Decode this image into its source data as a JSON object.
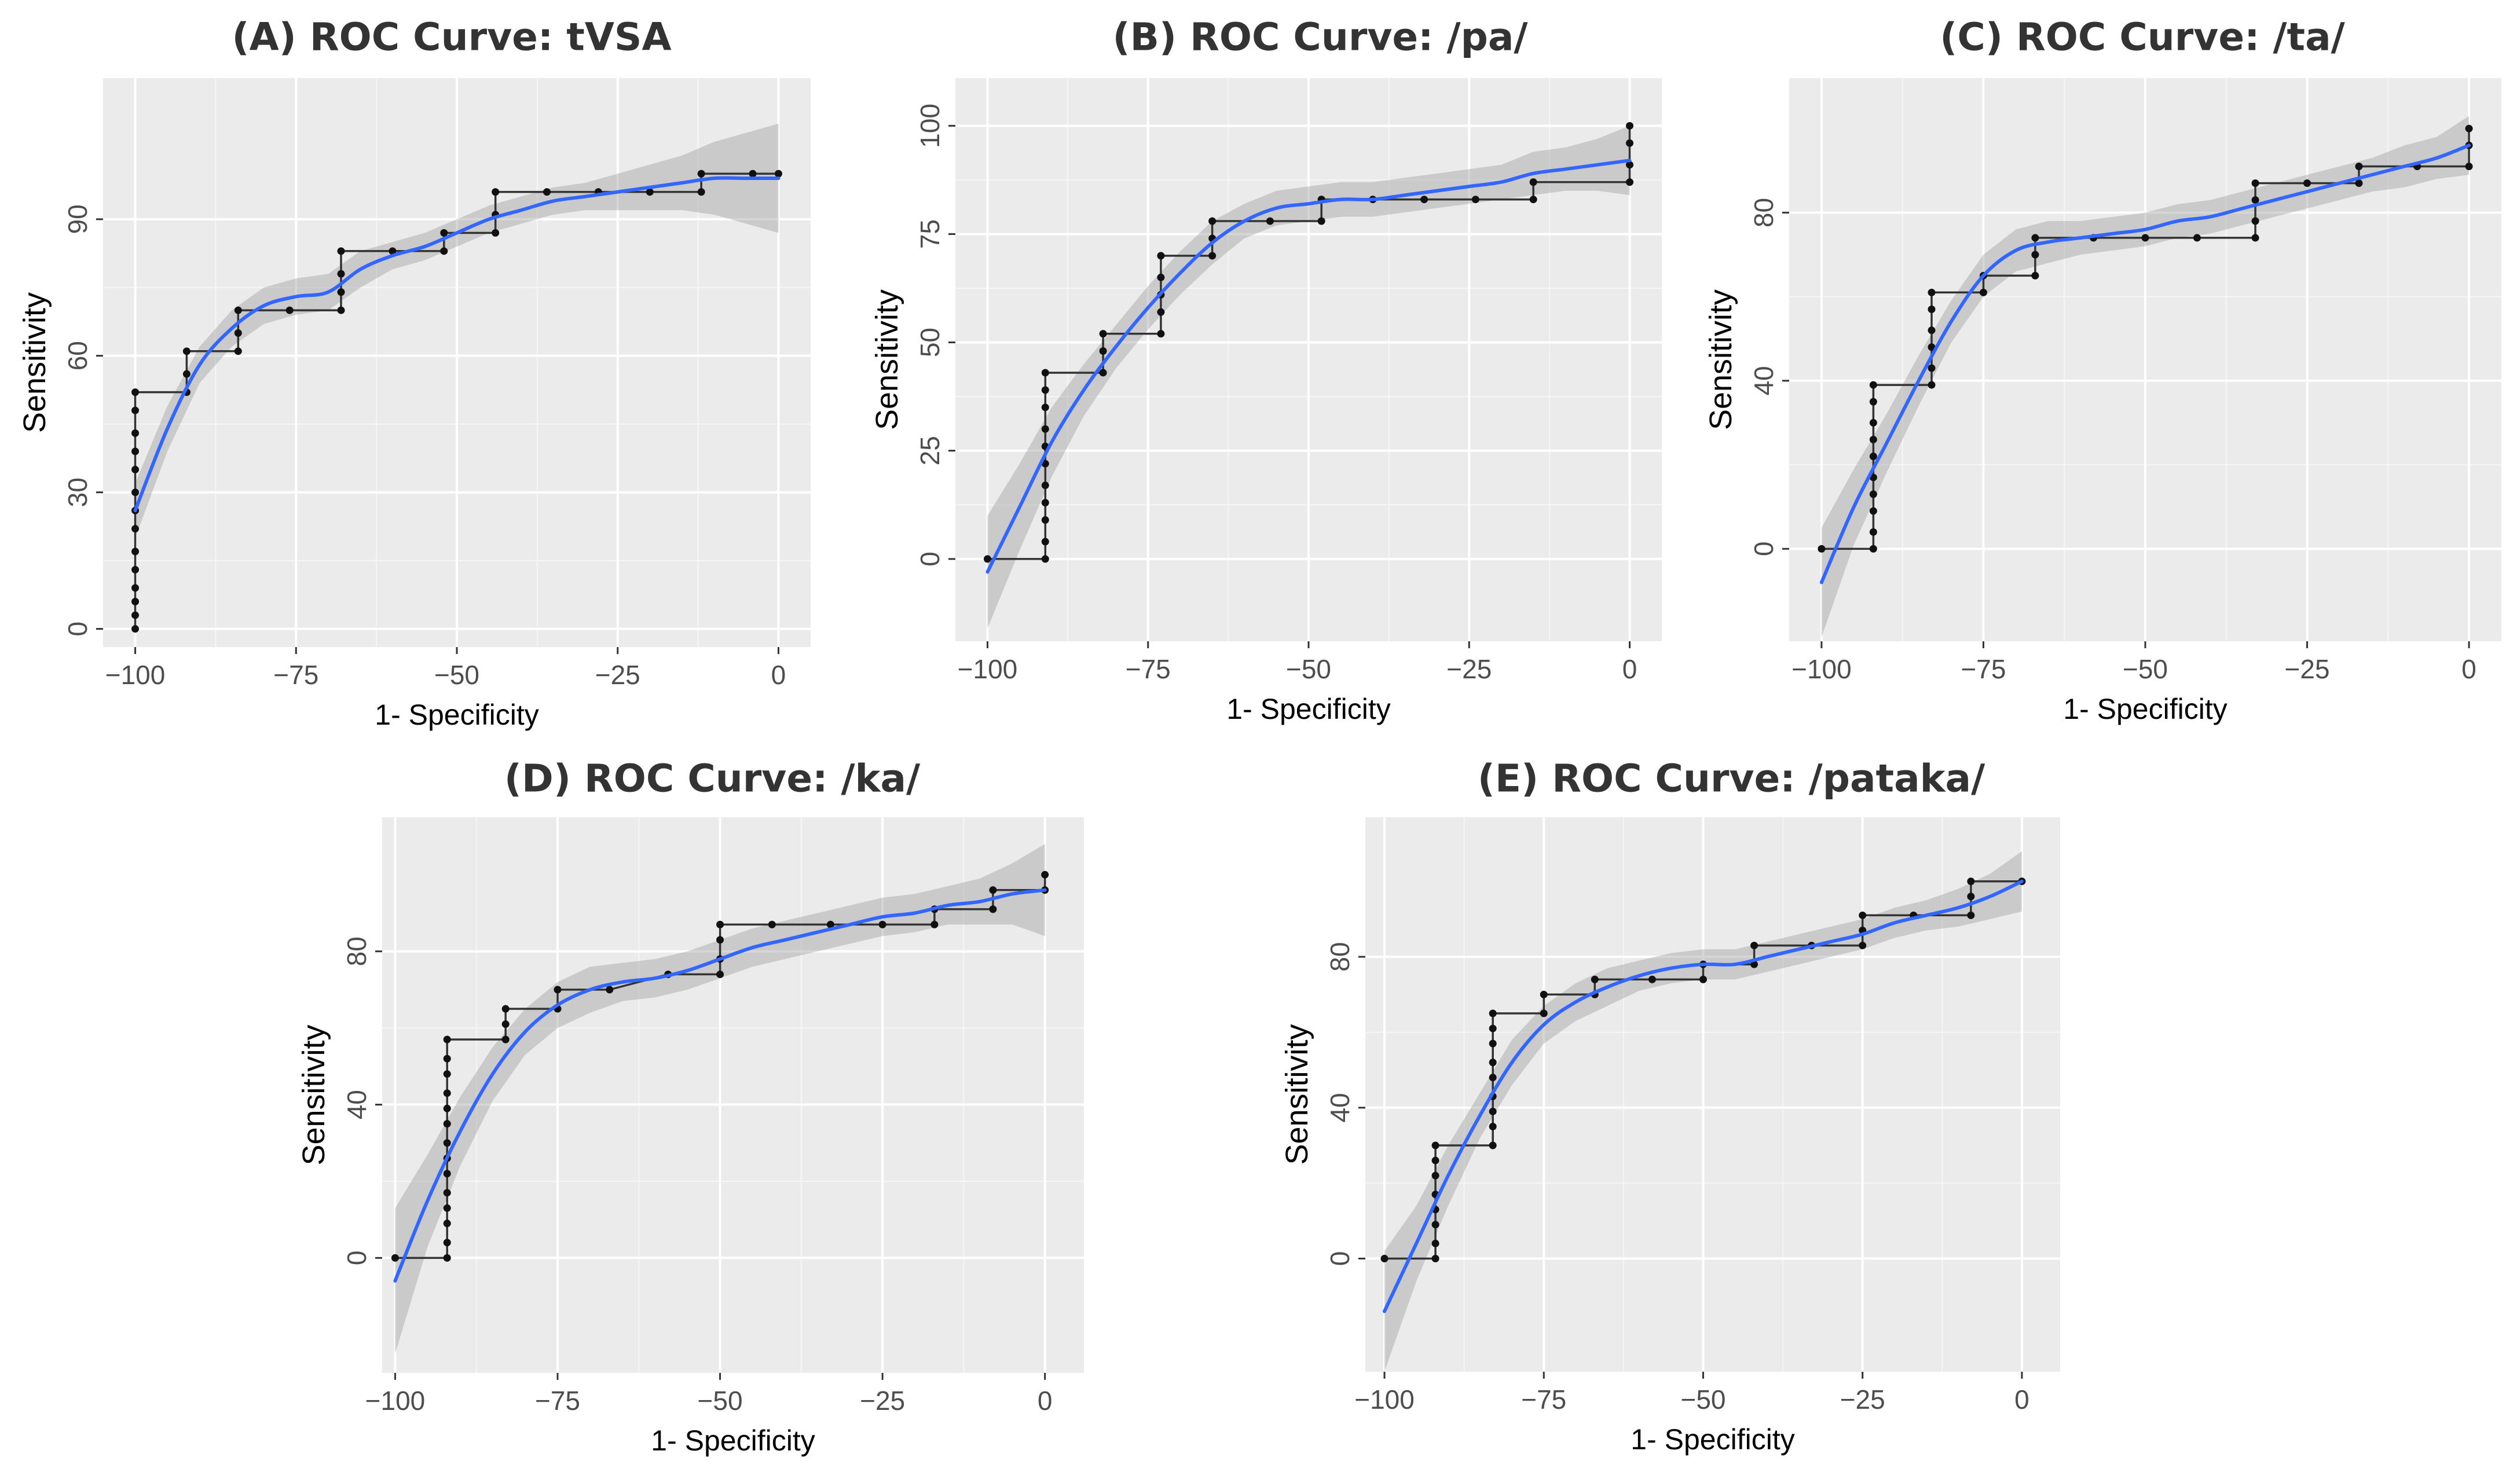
{
  "chart_data": [
    {
      "type": "line",
      "panel": "A",
      "title": "(A) ROC Curve: tVSA",
      "xlabel": "1- Specificity",
      "ylabel": "Sensitivity",
      "xlim": [
        -105,
        5
      ],
      "ylim": [
        -4,
        121
      ],
      "xticks": [
        -100,
        -75,
        -50,
        -25,
        0
      ],
      "xtick_labels": [
        "−100",
        "−75",
        "−50",
        "−25",
        "0"
      ],
      "yticks": [
        0,
        30,
        60,
        90
      ],
      "ytick_labels": [
        "0",
        "30",
        "60",
        "90"
      ],
      "roc_step": [
        [
          -100,
          0
        ],
        [
          -100,
          3
        ],
        [
          -100,
          6
        ],
        [
          -100,
          9
        ],
        [
          -100,
          13
        ],
        [
          -100,
          17
        ],
        [
          -100,
          22
        ],
        [
          -100,
          26
        ],
        [
          -100,
          30
        ],
        [
          -100,
          35
        ],
        [
          -100,
          39
        ],
        [
          -100,
          43
        ],
        [
          -100,
          48
        ],
        [
          -100,
          52
        ],
        [
          -92,
          52
        ],
        [
          -92,
          56
        ],
        [
          -92,
          61
        ],
        [
          -84,
          61
        ],
        [
          -84,
          65
        ],
        [
          -84,
          70
        ],
        [
          -76,
          70
        ],
        [
          -68,
          70
        ],
        [
          -68,
          74
        ],
        [
          -68,
          78
        ],
        [
          -68,
          83
        ],
        [
          -60,
          83
        ],
        [
          -52,
          83
        ],
        [
          -52,
          87
        ],
        [
          -44,
          87
        ],
        [
          -44,
          91
        ],
        [
          -44,
          96
        ],
        [
          -36,
          96
        ],
        [
          -28,
          96
        ],
        [
          -20,
          96
        ],
        [
          -12,
          96
        ],
        [
          -12,
          100
        ],
        [
          -4,
          100
        ],
        [
          0,
          100
        ]
      ],
      "smooth": [
        [
          -100,
          26
        ],
        [
          -95,
          44
        ],
        [
          -90,
          58
        ],
        [
          -85,
          66
        ],
        [
          -80,
          71
        ],
        [
          -75,
          73
        ],
        [
          -70,
          74
        ],
        [
          -65,
          79
        ],
        [
          -60,
          82
        ],
        [
          -55,
          84
        ],
        [
          -50,
          87
        ],
        [
          -45,
          90
        ],
        [
          -40,
          92
        ],
        [
          -35,
          94
        ],
        [
          -30,
          95
        ],
        [
          -25,
          96
        ],
        [
          -20,
          97
        ],
        [
          -15,
          98
        ],
        [
          -10,
          99
        ],
        [
          -5,
          99
        ],
        [
          0,
          99
        ]
      ],
      "band_halfwidth": [
        6,
        5,
        4,
        4,
        4,
        4,
        4,
        4,
        3,
        3,
        3,
        3,
        3,
        3,
        3,
        4,
        5,
        6,
        8,
        10,
        12
      ]
    },
    {
      "type": "line",
      "panel": "B",
      "title": "(B) ROC Curve: /pa/",
      "xlabel": "1- Specificity",
      "ylabel": "Sensitivity",
      "xlim": [
        -105,
        5
      ],
      "ylim": [
        -19,
        111
      ],
      "xticks": [
        -100,
        -75,
        -50,
        -25,
        0
      ],
      "xtick_labels": [
        "−100",
        "−75",
        "−50",
        "−25",
        "0"
      ],
      "yticks": [
        0,
        25,
        50,
        75,
        100
      ],
      "ytick_labels": [
        "0",
        "25",
        "50",
        "75",
        "100"
      ],
      "roc_step": [
        [
          -100,
          0
        ],
        [
          -91,
          0
        ],
        [
          -91,
          4
        ],
        [
          -91,
          9
        ],
        [
          -91,
          13
        ],
        [
          -91,
          17
        ],
        [
          -91,
          22
        ],
        [
          -91,
          26
        ],
        [
          -91,
          30
        ],
        [
          -91,
          35
        ],
        [
          -91,
          39
        ],
        [
          -91,
          43
        ],
        [
          -82,
          43
        ],
        [
          -82,
          48
        ],
        [
          -82,
          52
        ],
        [
          -73,
          52
        ],
        [
          -73,
          57
        ],
        [
          -73,
          61
        ],
        [
          -73,
          65
        ],
        [
          -73,
          70
        ],
        [
          -65,
          70
        ],
        [
          -65,
          74
        ],
        [
          -65,
          78
        ],
        [
          -56,
          78
        ],
        [
          -48,
          78
        ],
        [
          -48,
          83
        ],
        [
          -40,
          83
        ],
        [
          -32,
          83
        ],
        [
          -24,
          83
        ],
        [
          -15,
          83
        ],
        [
          -15,
          87
        ],
        [
          0,
          87
        ],
        [
          0,
          91
        ],
        [
          0,
          96
        ],
        [
          0,
          100
        ]
      ],
      "smooth": [
        [
          -100,
          -3
        ],
        [
          -95,
          12
        ],
        [
          -90,
          27
        ],
        [
          -85,
          39
        ],
        [
          -80,
          49
        ],
        [
          -75,
          58
        ],
        [
          -70,
          66
        ],
        [
          -65,
          73
        ],
        [
          -60,
          78
        ],
        [
          -55,
          81
        ],
        [
          -50,
          82
        ],
        [
          -45,
          83
        ],
        [
          -40,
          83
        ],
        [
          -35,
          84
        ],
        [
          -30,
          85
        ],
        [
          -25,
          86
        ],
        [
          -20,
          87
        ],
        [
          -15,
          89
        ],
        [
          -10,
          90
        ],
        [
          -5,
          91
        ],
        [
          0,
          92
        ]
      ],
      "band_halfwidth": [
        13,
        10,
        8,
        6,
        5,
        5,
        5,
        5,
        4,
        4,
        4,
        4,
        4,
        4,
        4,
        4,
        4,
        5,
        5,
        6,
        8
      ]
    },
    {
      "type": "line",
      "panel": "C",
      "title": "(C) ROC Curve: /ta/",
      "xlabel": "1- Specificity",
      "ylabel": "Sensitivity",
      "xlim": [
        -105,
        5
      ],
      "ylim": [
        -22,
        112
      ],
      "xticks": [
        -100,
        -75,
        -50,
        -25,
        0
      ],
      "xtick_labels": [
        "−100",
        "−75",
        "−50",
        "−25",
        "0"
      ],
      "yticks": [
        0,
        40,
        80
      ],
      "ytick_labels": [
        "0",
        "40",
        "80"
      ],
      "roc_step": [
        [
          -100,
          0
        ],
        [
          -92,
          0
        ],
        [
          -92,
          4
        ],
        [
          -92,
          9
        ],
        [
          -92,
          13
        ],
        [
          -92,
          17
        ],
        [
          -92,
          22
        ],
        [
          -92,
          26
        ],
        [
          -92,
          30
        ],
        [
          -92,
          35
        ],
        [
          -92,
          39
        ],
        [
          -83,
          39
        ],
        [
          -83,
          43
        ],
        [
          -83,
          48
        ],
        [
          -83,
          52
        ],
        [
          -83,
          57
        ],
        [
          -83,
          61
        ],
        [
          -75,
          61
        ],
        [
          -75,
          65
        ],
        [
          -67,
          65
        ],
        [
          -67,
          70
        ],
        [
          -67,
          74
        ],
        [
          -58,
          74
        ],
        [
          -50,
          74
        ],
        [
          -42,
          74
        ],
        [
          -33,
          74
        ],
        [
          -33,
          78
        ],
        [
          -33,
          83
        ],
        [
          -33,
          87
        ],
        [
          -25,
          87
        ],
        [
          -17,
          87
        ],
        [
          -17,
          91
        ],
        [
          -8,
          91
        ],
        [
          0,
          91
        ],
        [
          0,
          96
        ],
        [
          0,
          100
        ]
      ],
      "smooth": [
        [
          -100,
          -8
        ],
        [
          -95,
          10
        ],
        [
          -90,
          25
        ],
        [
          -85,
          40
        ],
        [
          -80,
          54
        ],
        [
          -75,
          65
        ],
        [
          -70,
          71
        ],
        [
          -65,
          73
        ],
        [
          -60,
          74
        ],
        [
          -55,
          75
        ],
        [
          -50,
          76
        ],
        [
          -45,
          78
        ],
        [
          -40,
          79
        ],
        [
          -35,
          81
        ],
        [
          -30,
          83
        ],
        [
          -25,
          85
        ],
        [
          -20,
          87
        ],
        [
          -15,
          89
        ],
        [
          -10,
          91
        ],
        [
          -5,
          93
        ],
        [
          0,
          96
        ]
      ],
      "band_halfwidth": [
        13,
        9,
        7,
        6,
        5,
        5,
        5,
        5,
        4,
        4,
        4,
        4,
        4,
        4,
        4,
        4,
        4,
        4,
        5,
        5,
        7
      ]
    },
    {
      "type": "line",
      "panel": "D",
      "title": "(D) ROC Curve: /ka/",
      "xlabel": "1- Specificity",
      "ylabel": "Sensitivity",
      "xlim": [
        -102,
        6
      ],
      "ylim": [
        -30,
        115
      ],
      "xticks": [
        -100,
        -75,
        -50,
        -25,
        0
      ],
      "xtick_labels": [
        "−100",
        "−75",
        "−50",
        "−25",
        "0"
      ],
      "yticks": [
        0,
        40,
        80
      ],
      "ytick_labels": [
        "0",
        "40",
        "80"
      ],
      "roc_step": [
        [
          -100,
          0
        ],
        [
          -92,
          0
        ],
        [
          -92,
          4
        ],
        [
          -92,
          9
        ],
        [
          -92,
          13
        ],
        [
          -92,
          17
        ],
        [
          -92,
          22
        ],
        [
          -92,
          26
        ],
        [
          -92,
          30
        ],
        [
          -92,
          35
        ],
        [
          -92,
          39
        ],
        [
          -92,
          43
        ],
        [
          -92,
          48
        ],
        [
          -92,
          52
        ],
        [
          -92,
          57
        ],
        [
          -83,
          57
        ],
        [
          -83,
          61
        ],
        [
          -83,
          65
        ],
        [
          -75,
          65
        ],
        [
          -75,
          70
        ],
        [
          -67,
          70
        ],
        [
          -58,
          74
        ],
        [
          -50,
          74
        ],
        [
          -50,
          78
        ],
        [
          -50,
          83
        ],
        [
          -50,
          87
        ],
        [
          -42,
          87
        ],
        [
          -33,
          87
        ],
        [
          -25,
          87
        ],
        [
          -17,
          87
        ],
        [
          -17,
          91
        ],
        [
          -8,
          91
        ],
        [
          -8,
          96
        ],
        [
          0,
          96
        ],
        [
          0,
          100
        ]
      ],
      "smooth": [
        [
          -100,
          -6
        ],
        [
          -95,
          15
        ],
        [
          -90,
          33
        ],
        [
          -85,
          48
        ],
        [
          -80,
          59
        ],
        [
          -75,
          66
        ],
        [
          -70,
          70
        ],
        [
          -65,
          72
        ],
        [
          -60,
          73
        ],
        [
          -55,
          75
        ],
        [
          -50,
          78
        ],
        [
          -45,
          81
        ],
        [
          -40,
          83
        ],
        [
          -35,
          85
        ],
        [
          -30,
          87
        ],
        [
          -25,
          89
        ],
        [
          -20,
          90
        ],
        [
          -15,
          92
        ],
        [
          -10,
          93
        ],
        [
          -5,
          95
        ],
        [
          0,
          96
        ]
      ],
      "band_halfwidth": [
        19,
        12,
        9,
        7,
        6,
        6,
        6,
        5,
        5,
        5,
        5,
        5,
        5,
        5,
        5,
        5,
        5,
        5,
        6,
        8,
        12
      ]
    },
    {
      "type": "line",
      "panel": "E",
      "title": "(E) ROC Curve: /pataka/",
      "xlabel": "1- Specificity",
      "ylabel": "Sensitivity",
      "xlim": [
        -103,
        6
      ],
      "ylim": [
        -30,
        117
      ],
      "xticks": [
        -100,
        -75,
        -50,
        -25,
        0
      ],
      "xtick_labels": [
        "−100",
        "−75",
        "−50",
        "−25",
        "0"
      ],
      "yticks": [
        0,
        40,
        80
      ],
      "ytick_labels": [
        "0",
        "40",
        "80"
      ],
      "roc_step": [
        [
          -100,
          0
        ],
        [
          -92,
          0
        ],
        [
          -92,
          4
        ],
        [
          -92,
          9
        ],
        [
          -92,
          13
        ],
        [
          -92,
          17
        ],
        [
          -92,
          22
        ],
        [
          -92,
          26
        ],
        [
          -92,
          30
        ],
        [
          -83,
          30
        ],
        [
          -83,
          35
        ],
        [
          -83,
          39
        ],
        [
          -83,
          43
        ],
        [
          -83,
          48
        ],
        [
          -83,
          52
        ],
        [
          -83,
          57
        ],
        [
          -83,
          61
        ],
        [
          -83,
          65
        ],
        [
          -75,
          65
        ],
        [
          -75,
          70
        ],
        [
          -67,
          70
        ],
        [
          -67,
          74
        ],
        [
          -58,
          74
        ],
        [
          -50,
          74
        ],
        [
          -50,
          78
        ],
        [
          -42,
          78
        ],
        [
          -42,
          83
        ],
        [
          -33,
          83
        ],
        [
          -25,
          83
        ],
        [
          -25,
          87
        ],
        [
          -25,
          91
        ],
        [
          -17,
          91
        ],
        [
          -8,
          91
        ],
        [
          -8,
          96
        ],
        [
          -8,
          100
        ],
        [
          0,
          100
        ]
      ],
      "smooth": [
        [
          -100,
          -14
        ],
        [
          -95,
          4
        ],
        [
          -90,
          22
        ],
        [
          -85,
          38
        ],
        [
          -80,
          52
        ],
        [
          -75,
          62
        ],
        [
          -70,
          68
        ],
        [
          -65,
          72
        ],
        [
          -60,
          75
        ],
        [
          -55,
          77
        ],
        [
          -50,
          78
        ],
        [
          -45,
          78
        ],
        [
          -40,
          80
        ],
        [
          -35,
          82
        ],
        [
          -30,
          84
        ],
        [
          -25,
          86
        ],
        [
          -20,
          89
        ],
        [
          -15,
          91
        ],
        [
          -10,
          93
        ],
        [
          -5,
          96
        ],
        [
          0,
          100
        ]
      ],
      "band_halfwidth": [
        16,
        10,
        8,
        6,
        6,
        5,
        5,
        5,
        4,
        4,
        4,
        4,
        4,
        4,
        4,
        4,
        4,
        4,
        5,
        6,
        8
      ]
    }
  ],
  "colors": {
    "panel_bg": "#ebebeb",
    "grid_major": "#ffffff",
    "smooth_line": "#3366ff",
    "band_fill": "#999999",
    "step_line": "#333333",
    "point": "#111111",
    "tick_label": "#4d4d4d"
  }
}
